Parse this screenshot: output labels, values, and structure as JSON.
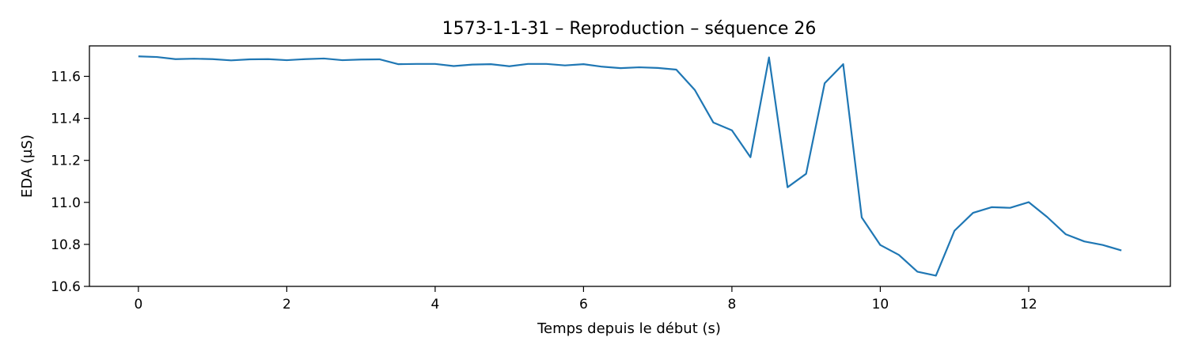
{
  "chart_data": {
    "type": "line",
    "title": "1573-1-1-31 – Reproduction – séquence 26",
    "xlabel": "Temps depuis le début (s)",
    "ylabel": "EDA (µS)",
    "xlim": [
      -0.66,
      13.91
    ],
    "ylim": [
      10.6,
      11.745
    ],
    "xticks": [
      0,
      2,
      4,
      6,
      8,
      10,
      12
    ],
    "yticks": [
      10.6,
      10.8,
      11.0,
      11.2,
      11.4,
      11.6
    ],
    "xtick_labels": [
      "0",
      "2",
      "4",
      "6",
      "8",
      "10",
      "12"
    ],
    "ytick_labels": [
      "10.6",
      "10.8",
      "11.0",
      "11.2",
      "11.4",
      "11.6"
    ],
    "grid": false,
    "line_color": "#1f77b4",
    "series": [
      {
        "x": [
          0,
          0.25,
          0.5,
          0.75,
          1.0,
          1.25,
          1.5,
          1.75,
          2.0,
          2.25,
          2.5,
          2.75,
          3.0,
          3.25,
          3.5,
          3.75,
          4.0,
          4.25,
          4.5,
          4.75,
          5.0,
          5.25,
          5.5,
          5.75,
          6.0,
          6.25,
          6.5,
          6.75,
          7.0,
          7.25,
          7.5,
          7.75,
          8.0,
          8.25,
          8.5,
          8.75,
          9.0,
          9.25,
          9.5,
          9.75,
          10.0,
          10.25,
          10.5,
          10.75,
          11.0,
          11.25,
          11.5,
          11.75,
          12.0,
          12.25,
          12.5,
          12.75,
          13.0,
          13.25
        ],
        "values": [
          11.695,
          11.692,
          11.682,
          11.684,
          11.682,
          11.676,
          11.681,
          11.682,
          11.677,
          11.682,
          11.685,
          11.677,
          11.68,
          11.681,
          11.658,
          11.659,
          11.659,
          11.649,
          11.656,
          11.658,
          11.648,
          11.659,
          11.659,
          11.652,
          11.658,
          11.646,
          11.639,
          11.643,
          11.64,
          11.632,
          11.535,
          11.38,
          11.343,
          11.215,
          11.69,
          11.072,
          11.136,
          11.567,
          11.658,
          10.928,
          10.797,
          10.75,
          10.67,
          10.651,
          10.865,
          10.95,
          10.977,
          10.974,
          11.001,
          10.93,
          10.848,
          10.814,
          10.797,
          10.771
        ]
      }
    ]
  }
}
